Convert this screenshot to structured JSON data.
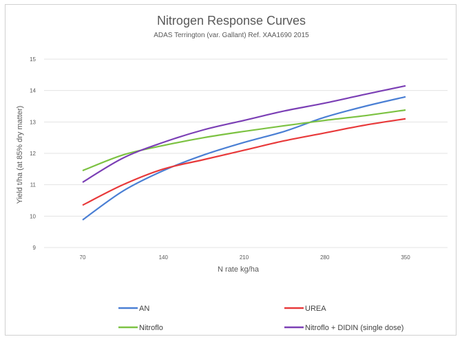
{
  "chart_data": {
    "type": "line",
    "title": "Nitrogen Response Curves",
    "subtitle": "ADAS Terrington (var. Gallant) Ref. XAA1690 2015",
    "xlabel": "N rate kg/ha",
    "ylabel": "Yield t/ha (at 85% dry matter)",
    "x_ticks": [
      70,
      140,
      210,
      280,
      350
    ],
    "y_ticks": [
      9,
      10,
      11,
      12,
      13,
      14,
      15
    ],
    "xlim": [
      70,
      350
    ],
    "ylim": [
      9,
      15
    ],
    "grid": true,
    "legend_position": "bottom",
    "series": [
      {
        "name": "AN",
        "color": "#4a7fd4",
        "x": [
          70,
          105,
          140,
          175,
          210,
          245,
          280,
          315,
          350
        ],
        "y": [
          9.88,
          10.8,
          11.45,
          11.95,
          12.35,
          12.7,
          13.15,
          13.5,
          13.8
        ]
      },
      {
        "name": "UREA",
        "color": "#e8393a",
        "x": [
          70,
          105,
          140,
          175,
          210,
          245,
          280,
          315,
          350
        ],
        "y": [
          10.35,
          11.0,
          11.5,
          11.8,
          12.1,
          12.4,
          12.65,
          12.9,
          13.1
        ]
      },
      {
        "name": "Nitroflo",
        "color": "#7cc242",
        "x": [
          70,
          105,
          140,
          175,
          210,
          245,
          280,
          315,
          350
        ],
        "y": [
          11.45,
          11.95,
          12.25,
          12.5,
          12.7,
          12.88,
          13.05,
          13.2,
          13.38
        ]
      },
      {
        "name": "Nitroflo + DIDIN (single dose)",
        "color": "#7b3fb5",
        "x": [
          70,
          105,
          140,
          175,
          210,
          245,
          280,
          315,
          350
        ],
        "y": [
          11.08,
          11.85,
          12.35,
          12.75,
          13.05,
          13.35,
          13.6,
          13.88,
          14.15
        ]
      }
    ]
  }
}
